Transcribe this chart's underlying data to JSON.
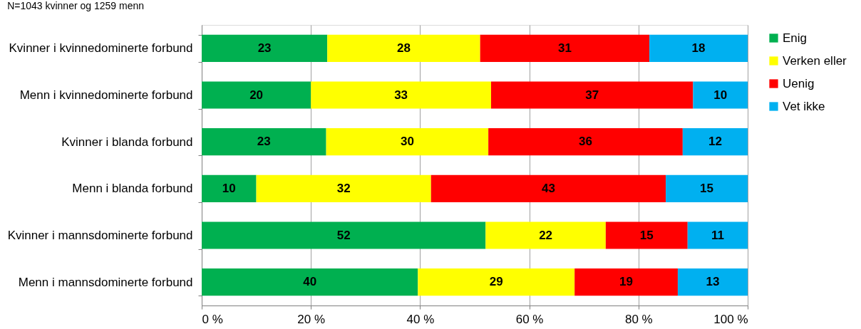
{
  "chart_data": {
    "type": "bar",
    "orientation": "horizontal",
    "stacked": true,
    "title": "N=1043 kvinner og 1259 menn",
    "categories": [
      "Kvinner i kvinnedominerte forbund",
      "Menn i kvinnedominerte forbund",
      "Kvinner i blanda forbund",
      "Menn i blanda forbund",
      "Kvinner i mannsdominerte forbund",
      "Menn i mannsdominerte forbund"
    ],
    "series": [
      {
        "name": "Enig",
        "color": "#00b050",
        "values": [
          23,
          20,
          22.8,
          10,
          52,
          39.6
        ],
        "value_labels": [
          "23",
          "20",
          "23",
          "10",
          "52",
          "40"
        ]
      },
      {
        "name": "Verken eller",
        "color": "#ffff00",
        "values": [
          28,
          33,
          29.7,
          32,
          22,
          28.7
        ],
        "value_labels": [
          "28",
          "33",
          "30",
          "32",
          "22",
          "29"
        ]
      },
      {
        "name": "Uenig",
        "color": "#ff0000",
        "values": [
          31,
          37,
          35.6,
          43,
          15,
          18.9
        ],
        "value_labels": [
          "31",
          "37",
          "36",
          "43",
          "15",
          "19"
        ]
      },
      {
        "name": "Vet ikke",
        "color": "#00b0f0",
        "values": [
          18,
          10,
          11.9,
          15,
          11,
          12.8
        ],
        "value_labels": [
          "18",
          "10",
          "12",
          "15",
          "11",
          "13"
        ]
      }
    ],
    "xlim": [
      0,
      100
    ],
    "xticks": [
      {
        "value": 0,
        "label": "0 %"
      },
      {
        "value": 20,
        "label": "20 %"
      },
      {
        "value": 40,
        "label": "40 %"
      },
      {
        "value": 60,
        "label": "60 %"
      },
      {
        "value": 80,
        "label": "80 %"
      },
      {
        "value": 100,
        "label": "100 %"
      }
    ],
    "grid": "x",
    "legend": "right"
  }
}
